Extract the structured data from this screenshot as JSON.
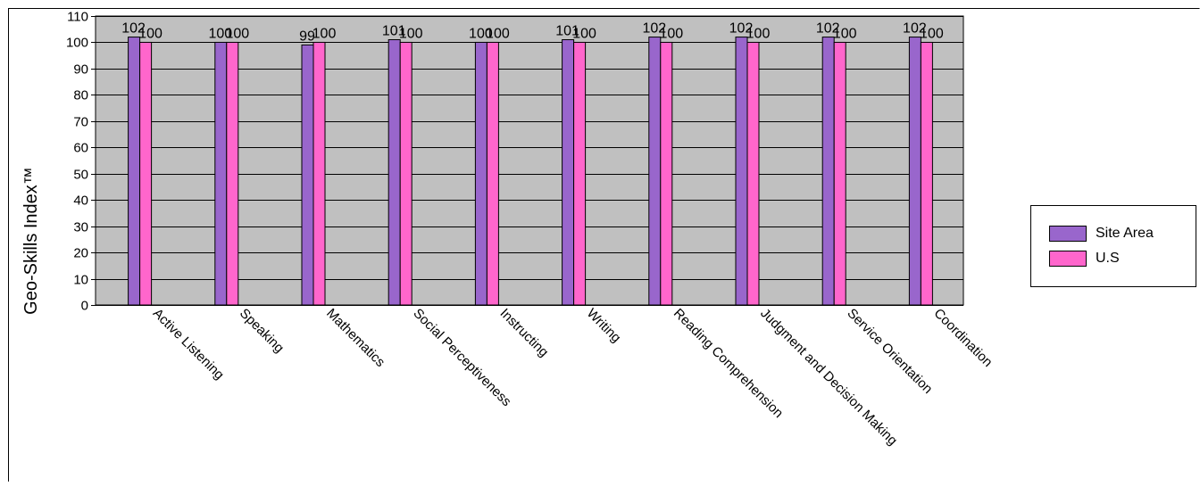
{
  "chart_data": {
    "type": "bar",
    "ylabel": "Geo-Skills Index™",
    "xlabel": "",
    "title": "",
    "ylim": [
      0,
      110
    ],
    "yticks": [
      0,
      10,
      20,
      30,
      40,
      50,
      60,
      70,
      80,
      90,
      100,
      110
    ],
    "grid": true,
    "legend_position": "right",
    "categories": [
      "Active Listening",
      "Speaking",
      "Mathematics",
      "Social Perceptiveness",
      "Instructing",
      "Writing",
      "Reading Comprehension",
      "Judgment and Decision Making",
      "Service Orientation",
      "Coordination"
    ],
    "series": [
      {
        "name": "Site Area",
        "color": "#9966cc",
        "values": [
          102,
          100,
          99,
          101,
          100,
          101,
          102,
          102,
          102,
          102
        ]
      },
      {
        "name": "U.S",
        "color": "#ff66cc",
        "values": [
          100,
          100,
          100,
          100,
          100,
          100,
          100,
          100,
          100,
          100
        ]
      }
    ],
    "plot_background": "#c0c0c0"
  }
}
